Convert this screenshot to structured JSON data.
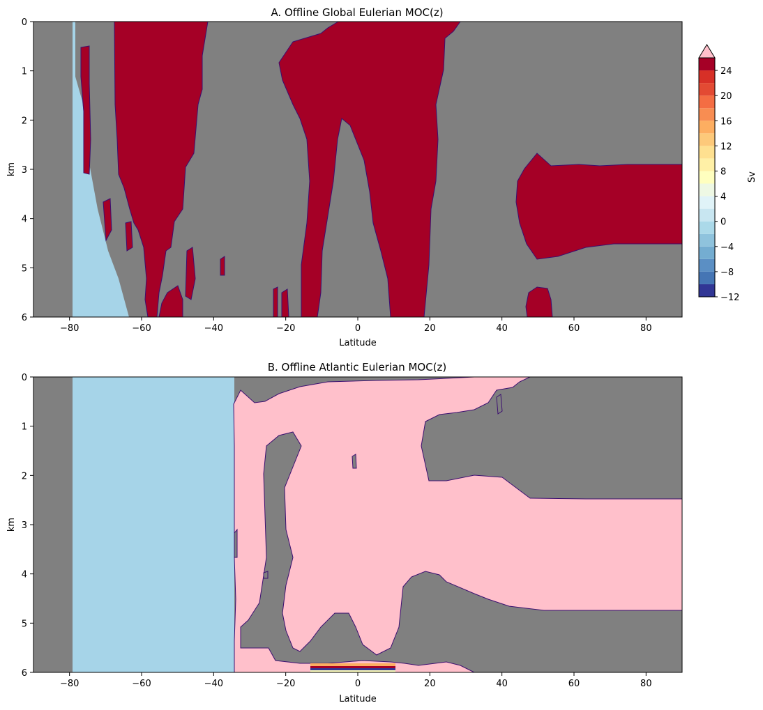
{
  "chart_data": [
    {
      "type": "heatmap",
      "title": "A. Offline Global Eulerian MOC(z)",
      "xlabel": "Latitude",
      "ylabel": "km",
      "xlim": [
        -90,
        90
      ],
      "ylim": [
        6,
        0
      ],
      "x_ticks": [
        -80,
        -60,
        -40,
        -20,
        0,
        20,
        40,
        60,
        80
      ],
      "y_ticks": [
        0,
        1,
        2,
        3,
        4,
        5,
        6
      ],
      "colors": {
        "background": "#808080",
        "strong_positive": "#a50026",
        "negative_region": "#a6d4e8",
        "contour_line": "#3b0f70"
      },
      "regions": [
        {
          "value_class": "below -12 / masked",
          "color": "#808080",
          "description_free": true
        },
        {
          "value_class": ">= 26 Sv",
          "color": "#a50026"
        },
        {
          "value_class": "-2 to 0 Sv",
          "color": "#a6d4e8"
        }
      ]
    },
    {
      "type": "heatmap",
      "title": "B. Offline Atlantic Eulerian MOC(z)",
      "xlabel": "Latitude",
      "ylabel": "km",
      "xlim": [
        -90,
        90
      ],
      "ylim": [
        6,
        0
      ],
      "x_ticks": [
        -80,
        -60,
        -40,
        -20,
        0,
        20,
        40,
        60,
        80
      ],
      "y_ticks": [
        0,
        1,
        2,
        3,
        4,
        5,
        6
      ],
      "colors": {
        "background": "#808080",
        "over_range": "#ffc0cb",
        "negative_region": "#a6d4e8",
        "contour_line": "#3b0f70"
      }
    }
  ],
  "colorbar": {
    "label": "Sv",
    "ticks": [
      -12,
      -8,
      -4,
      0,
      4,
      8,
      12,
      16,
      20,
      24
    ],
    "levels": [
      -12,
      -10,
      -8,
      -6,
      -4,
      -2,
      0,
      2,
      4,
      6,
      8,
      10,
      12,
      14,
      16,
      18,
      20,
      22,
      24,
      26
    ],
    "colors": [
      "#313695",
      "#4575b4",
      "#5b8fc4",
      "#74add1",
      "#8fc3dd",
      "#abd9e9",
      "#c8e6f1",
      "#e0f3f8",
      "#eef8e4",
      "#ffffbf",
      "#fff0a6",
      "#fee090",
      "#fdc97a",
      "#fdae61",
      "#f88d52",
      "#f46d43",
      "#e34a33",
      "#d73027",
      "#a50026"
    ],
    "extend_color": "#ffc0cb"
  }
}
